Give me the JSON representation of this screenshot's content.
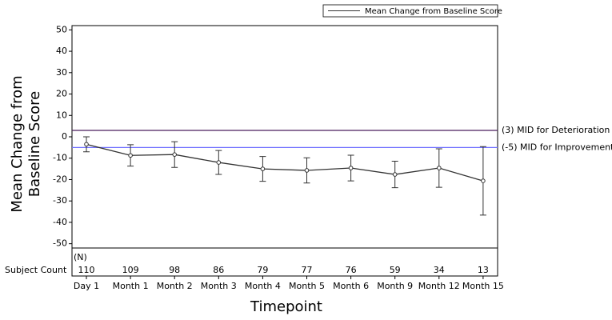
{
  "chart_data": {
    "type": "line",
    "y_label_lines": [
      "Mean Change from",
      "Baseline Score"
    ],
    "x_label": "Timepoint",
    "categories": [
      "Day 1",
      "Month 1",
      "Month 2",
      "Month 3",
      "Month 4",
      "Month 5",
      "Month 6",
      "Month 9",
      "Month 12",
      "Month 15"
    ],
    "series": [
      {
        "name": "Mean Change from Baseline Score",
        "color": "#333333",
        "values": [
          -3.5,
          -8.7,
          -8.3,
          -12,
          -15,
          -15.7,
          -14.6,
          -17.6,
          -14.6,
          -20.6
        ],
        "errors": [
          3.5,
          5,
          6,
          5.6,
          5.8,
          5.9,
          6,
          6.2,
          9,
          16
        ]
      }
    ],
    "reference_lines": [
      {
        "value": 3,
        "label": "(3) MID for Deterioration",
        "color": "#4b1f5e"
      },
      {
        "value": -5,
        "label": "(-5) MID for Improvement",
        "color": "#7070ff"
      }
    ],
    "ylim": [
      -52,
      52
    ],
    "yticks": [
      -50,
      -40,
      -30,
      -20,
      -10,
      0,
      10,
      20,
      30,
      40,
      50
    ],
    "subject_counts": {
      "row_label": "Subject Count",
      "header": "(N)",
      "values": [
        "110",
        "109",
        "98",
        "86",
        "79",
        "77",
        "76",
        "59",
        "34",
        "13"
      ]
    }
  }
}
